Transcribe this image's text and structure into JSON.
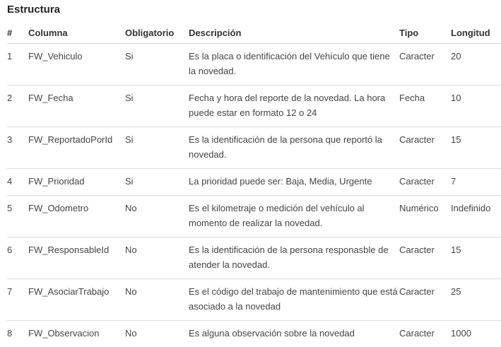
{
  "page": {
    "title": "Estructura"
  },
  "colors": {
    "text": "#444444",
    "heading": "#222222",
    "border": "#dddddd"
  },
  "table": {
    "columns": [
      {
        "key": "num",
        "label": "#"
      },
      {
        "key": "columna",
        "label": "Columna"
      },
      {
        "key": "obligatorio",
        "label": "Obligatorio"
      },
      {
        "key": "descripcion",
        "label": "Descripción"
      },
      {
        "key": "tipo",
        "label": "Tipo"
      },
      {
        "key": "longitud",
        "label": "Longitud"
      }
    ],
    "rows": [
      {
        "num": "1",
        "columna": "FW_Vehiculo",
        "obligatorio": "Si",
        "descripcion": "Es la placa o identificación del Vehículo que tiene la novedad.",
        "tipo": "Caracter",
        "longitud": "20"
      },
      {
        "num": "2",
        "columna": "FW_Fecha",
        "obligatorio": "Si",
        "descripcion": "Fecha y hora del reporte de la novedad. La hora puede estar en formato 12 o 24",
        "tipo": "Fecha",
        "longitud": "10"
      },
      {
        "num": "3",
        "columna": "FW_ReportadoPorId",
        "obligatorio": "Si",
        "descripcion": "Es la identificación de la persona que reportó la novedad.",
        "tipo": "Caracter",
        "longitud": "15"
      },
      {
        "num": "4",
        "columna": "FW_Prioridad",
        "obligatorio": "Si",
        "descripcion": "La prioridad puede ser: Baja, Media, Urgente",
        "tipo": "Caracter",
        "longitud": "7"
      },
      {
        "num": "5",
        "columna": "FW_Odometro",
        "obligatorio": "No",
        "descripcion": "Es el kilometraje o medición del vehículo al momento de realizar la novedad.",
        "tipo": "Numérico",
        "longitud": "Indefinido"
      },
      {
        "num": "6",
        "columna": "FW_ResponsableId",
        "obligatorio": "No",
        "descripcion": "Es la identificación de la persona responasble de atender la novedad.",
        "tipo": "Caracter",
        "longitud": "15"
      },
      {
        "num": "7",
        "columna": "FW_AsociarTrabajo",
        "obligatorio": "No",
        "descripcion": "Es el código del trabajo de mantenimiento que está asociado a la novedad",
        "tipo": "Caracter",
        "longitud": "25"
      },
      {
        "num": "8",
        "columna": "FW_Observacion",
        "obligatorio": "No",
        "descripcion": "Es alguna observación sobre la novedad",
        "tipo": "Caracter",
        "longitud": "1000"
      }
    ]
  }
}
